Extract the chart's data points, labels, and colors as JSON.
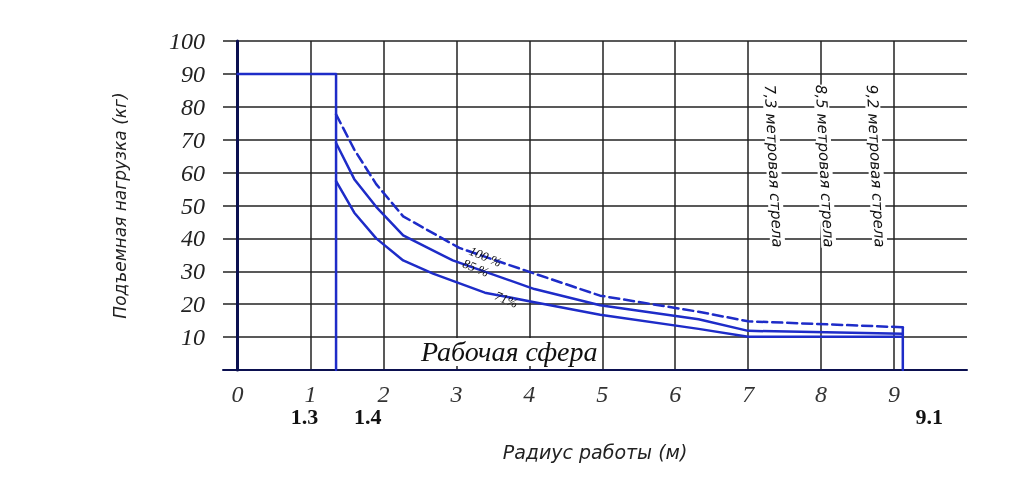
{
  "chart_data": {
    "type": "line",
    "xlabel": "Радиус работы (м)",
    "ylabel": "Подъемная нагрузка (кг)",
    "xlim": [
      -0.2,
      10
    ],
    "xticks": [
      0,
      1,
      2,
      3,
      4,
      5,
      6,
      7,
      8,
      9
    ],
    "ylim": [
      0,
      100
    ],
    "yticks": [
      10,
      20,
      30,
      40,
      50,
      60,
      70,
      80,
      90,
      100
    ],
    "grid": true,
    "legend": false,
    "marker": "none",
    "series": [
      {
        "name": "100 %",
        "color": "#1e2cc8",
        "line_style": "dashed",
        "x": [
          1.35,
          1.6,
          1.9,
          2.27,
          3.04,
          4.07,
          4.97,
          6.32,
          7.0,
          9.12
        ],
        "values": [
          77.7,
          67,
          56.5,
          46.7,
          37.1,
          29.3,
          22.6,
          17.7,
          14.8,
          13
        ]
      },
      {
        "name": "85 %",
        "color": "#1e2cc8",
        "line_style": "solid",
        "x": [
          1.35,
          1.6,
          1.9,
          2.27,
          2.95,
          4.07,
          4.97,
          6.32,
          7.0,
          9.12
        ],
        "values": [
          69,
          58,
          49.6,
          40.9,
          33.3,
          24.6,
          19.7,
          15.4,
          11.9,
          11
        ]
      },
      {
        "name": "71%",
        "color": "#1e2cc8",
        "line_style": "solid",
        "x": [
          1.35,
          1.6,
          1.9,
          2.27,
          2.68,
          3.39,
          4.07,
          4.97,
          6.32,
          7.0,
          9.12
        ],
        "values": [
          57.4,
          47.8,
          40,
          33.3,
          29.3,
          23.5,
          20.6,
          16.8,
          12.5,
          10.1,
          10.1
        ]
      },
      {
        "color": "#1e2cc8",
        "line_style": "solid",
        "x": [
          0,
          1.35,
          1.35
        ],
        "values": [
          90,
          90,
          0
        ]
      },
      {
        "color": "#1e2cc8",
        "line_style": "solid",
        "x": [
          9.12,
          9.12
        ],
        "values": [
          13,
          0
        ]
      }
    ],
    "annotations": [
      "Рабочая сфера",
      {
        "text": "1.3",
        "x": 1.3,
        "y": 0
      },
      {
        "text": "1.4",
        "x": 1.4,
        "y": 0
      },
      {
        "text": "9.1",
        "x": 9.1,
        "y": 0
      },
      "7,3 метровая стрела",
      "8,5 метровая стрела",
      "9,2 метровая стрела"
    ]
  }
}
